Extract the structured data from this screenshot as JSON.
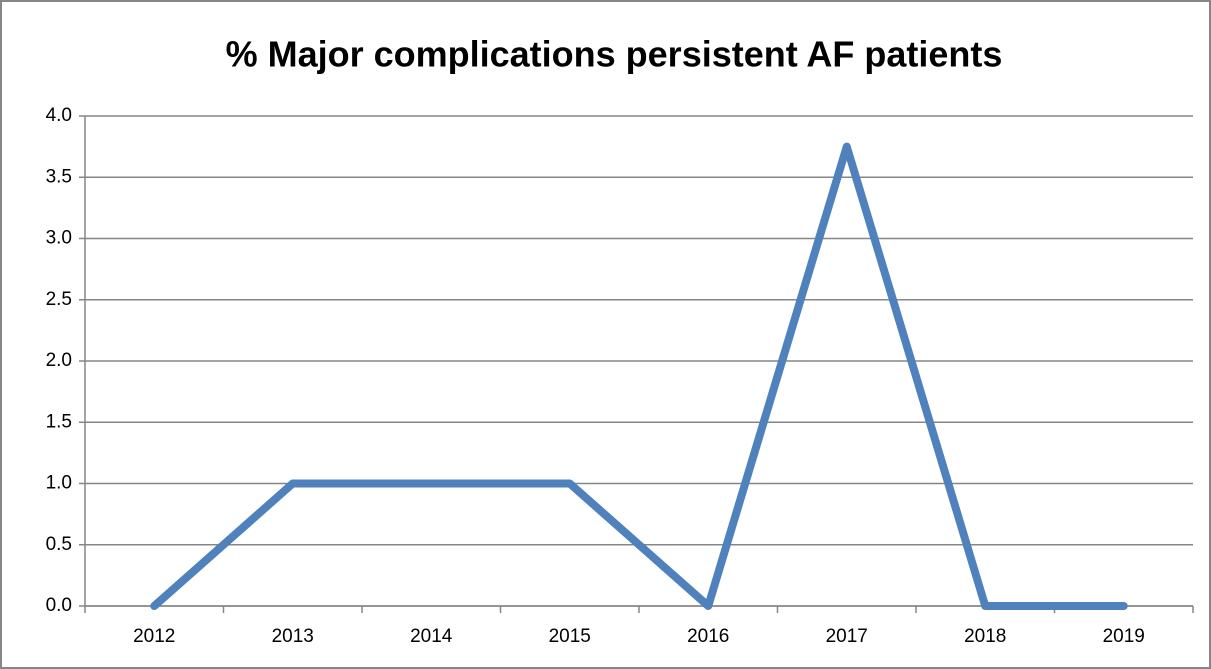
{
  "chart_data": {
    "type": "line",
    "title": "% Major complications persistent AF patients",
    "categories": [
      "2012",
      "2013",
      "2014",
      "2015",
      "2016",
      "2017",
      "2018",
      "2019"
    ],
    "values": [
      0,
      1.0,
      1.0,
      1.0,
      0,
      3.75,
      0,
      0
    ],
    "color": "#4f81bd",
    "ylim": [
      0,
      4
    ],
    "yticks": [
      {
        "value": 0,
        "label": "0.0"
      },
      0.5,
      {
        "value": 1,
        "label": "1.0"
      },
      1.5,
      {
        "value": 2,
        "label": "2.0"
      },
      2.5,
      {
        "value": 3,
        "label": "3.0"
      },
      3.5,
      {
        "value": 4,
        "label": "4.0"
      }
    ],
    "grid": true
  }
}
